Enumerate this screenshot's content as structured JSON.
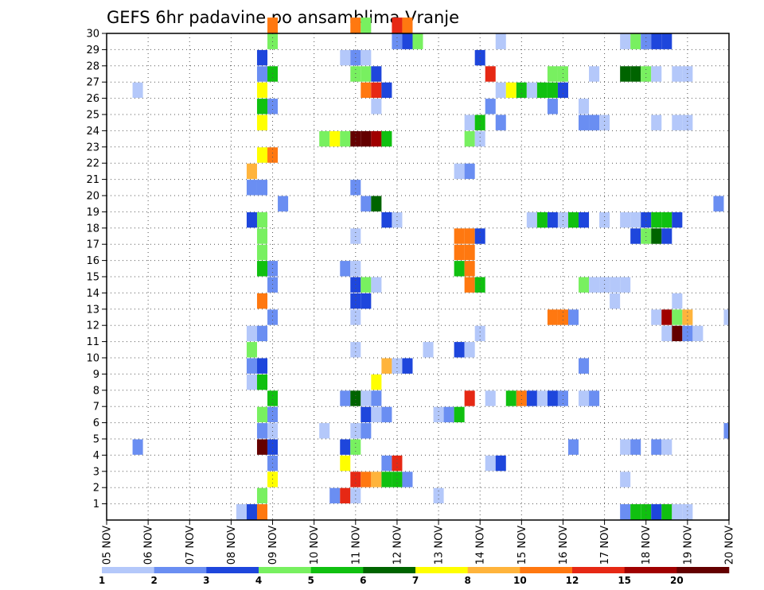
{
  "chart_data": {
    "type": "heatmap",
    "title": "GEFS 6hr padavine po ansamblima Vranje",
    "xlabel": "",
    "ylabel": "",
    "x_ticks": [
      "05 NOV",
      "06 NOV",
      "07 NOV",
      "08 NOV",
      "09 NOV",
      "10 NOV",
      "11 NOV",
      "12 NOV",
      "13 NOV",
      "14 NOV",
      "15 NOV",
      "16 NOV",
      "17 NOV",
      "18 NOV",
      "19 NOV",
      "20 NOV"
    ],
    "y_ticks": [
      "1",
      "2",
      "3",
      "4",
      "5",
      "6",
      "7",
      "8",
      "9",
      "10",
      "11",
      "12",
      "13",
      "14",
      "15",
      "16",
      "17",
      "18",
      "19",
      "20",
      "21",
      "22",
      "23",
      "24",
      "25",
      "26",
      "27",
      "28",
      "29",
      "30"
    ],
    "x_range": [
      "05 NOV 00Z",
      "20 NOV 00Z"
    ],
    "y_range": [
      0,
      30
    ],
    "grid": true,
    "colorbar": {
      "position": "bottom",
      "labels": [
        "1",
        "2",
        "3",
        "4",
        "5",
        "6",
        "7",
        "8",
        "10",
        "12",
        "15",
        "20"
      ],
      "colors": [
        "#b4c8fa",
        "#6a8ef2",
        "#1e46dc",
        "#78f060",
        "#10c010",
        "#006400",
        "#ffff00",
        "#ffb43c",
        "#ff7810",
        "#e62814",
        "#a00000",
        "#640000"
      ]
    },
    "cells": [
      {
        "d": 9.0,
        "m": 30,
        "c": 10
      },
      {
        "d": 11.0,
        "m": 30,
        "c": 10
      },
      {
        "d": 11.25,
        "m": 30,
        "c": 4
      },
      {
        "d": 12.0,
        "m": 30,
        "c": 14
      },
      {
        "d": 12.25,
        "m": 30,
        "c": 9
      },
      {
        "d": 9.0,
        "m": 29,
        "c": 4
      },
      {
        "d": 12.0,
        "m": 29,
        "c": 2
      },
      {
        "d": 12.25,
        "m": 29,
        "c": 3
      },
      {
        "d": 12.5,
        "m": 29,
        "c": 4
      },
      {
        "d": 14.5,
        "m": 29,
        "c": 1
      },
      {
        "d": 17.5,
        "m": 29,
        "c": 1
      },
      {
        "d": 17.75,
        "m": 29,
        "c": 4
      },
      {
        "d": 18.0,
        "m": 29,
        "c": 2
      },
      {
        "d": 18.25,
        "m": 29,
        "c": 3
      },
      {
        "d": 18.5,
        "m": 29,
        "c": 3
      },
      {
        "d": 8.75,
        "m": 28,
        "c": 3
      },
      {
        "d": 10.75,
        "m": 28,
        "c": 1
      },
      {
        "d": 11.0,
        "m": 28,
        "c": 2
      },
      {
        "d": 11.25,
        "m": 28,
        "c": 1
      },
      {
        "d": 14.0,
        "m": 28,
        "c": 3
      },
      {
        "d": 8.75,
        "m": 27,
        "c": 2
      },
      {
        "d": 9.0,
        "m": 27,
        "c": 5
      },
      {
        "d": 11.0,
        "m": 27,
        "c": 4
      },
      {
        "d": 11.25,
        "m": 27,
        "c": 4
      },
      {
        "d": 11.5,
        "m": 27,
        "c": 3
      },
      {
        "d": 14.25,
        "m": 27,
        "c": 14
      },
      {
        "d": 15.75,
        "m": 27,
        "c": 4
      },
      {
        "d": 16.0,
        "m": 27,
        "c": 4
      },
      {
        "d": 16.75,
        "m": 27,
        "c": 1
      },
      {
        "d": 17.5,
        "m": 27,
        "c": 6
      },
      {
        "d": 17.75,
        "m": 27,
        "c": 6
      },
      {
        "d": 18.0,
        "m": 27,
        "c": 4
      },
      {
        "d": 18.25,
        "m": 27,
        "c": 1
      },
      {
        "d": 18.75,
        "m": 27,
        "c": 1
      },
      {
        "d": 19.0,
        "m": 27,
        "c": 1
      },
      {
        "d": 5.75,
        "m": 26,
        "c": 1
      },
      {
        "d": 8.75,
        "m": 26,
        "c": 7
      },
      {
        "d": 11.25,
        "m": 26,
        "c": 10
      },
      {
        "d": 11.5,
        "m": 26,
        "c": 14
      },
      {
        "d": 11.75,
        "m": 26,
        "c": 3
      },
      {
        "d": 14.5,
        "m": 26,
        "c": 1
      },
      {
        "d": 14.75,
        "m": 26,
        "c": 7
      },
      {
        "d": 15.0,
        "m": 26,
        "c": 5
      },
      {
        "d": 15.25,
        "m": 26,
        "c": 1
      },
      {
        "d": 15.5,
        "m": 26,
        "c": 5
      },
      {
        "d": 15.75,
        "m": 26,
        "c": 5
      },
      {
        "d": 16.0,
        "m": 26,
        "c": 3
      },
      {
        "d": 8.75,
        "m": 25,
        "c": 5
      },
      {
        "d": 9.0,
        "m": 25,
        "c": 2
      },
      {
        "d": 11.5,
        "m": 25,
        "c": 1
      },
      {
        "d": 14.25,
        "m": 25,
        "c": 2
      },
      {
        "d": 15.75,
        "m": 25,
        "c": 2
      },
      {
        "d": 16.5,
        "m": 25,
        "c": 1
      },
      {
        "d": 8.75,
        "m": 24,
        "c": 7
      },
      {
        "d": 13.75,
        "m": 24,
        "c": 1
      },
      {
        "d": 14.0,
        "m": 24,
        "c": 5
      },
      {
        "d": 14.5,
        "m": 24,
        "c": 2
      },
      {
        "d": 16.5,
        "m": 24,
        "c": 2
      },
      {
        "d": 16.75,
        "m": 24,
        "c": 2
      },
      {
        "d": 17.0,
        "m": 24,
        "c": 1
      },
      {
        "d": 18.25,
        "m": 24,
        "c": 1
      },
      {
        "d": 18.75,
        "m": 24,
        "c": 1
      },
      {
        "d": 19.0,
        "m": 24,
        "c": 1
      },
      {
        "d": 10.25,
        "m": 23,
        "c": 4
      },
      {
        "d": 10.5,
        "m": 23,
        "c": 7
      },
      {
        "d": 10.75,
        "m": 23,
        "c": 4
      },
      {
        "d": 11.0,
        "m": 23,
        "c": 12
      },
      {
        "d": 11.25,
        "m": 23,
        "c": 12
      },
      {
        "d": 11.5,
        "m": 23,
        "c": 11
      },
      {
        "d": 11.75,
        "m": 23,
        "c": 5
      },
      {
        "d": 13.75,
        "m": 23,
        "c": 4
      },
      {
        "d": 14.0,
        "m": 23,
        "c": 1
      },
      {
        "d": 8.75,
        "m": 22,
        "c": 7
      },
      {
        "d": 9.0,
        "m": 22,
        "c": 9
      },
      {
        "d": 8.5,
        "m": 21,
        "c": 8
      },
      {
        "d": 13.5,
        "m": 21,
        "c": 1
      },
      {
        "d": 13.75,
        "m": 21,
        "c": 2
      },
      {
        "d": 8.5,
        "m": 20,
        "c": 2
      },
      {
        "d": 8.75,
        "m": 20,
        "c": 2
      },
      {
        "d": 11.0,
        "m": 20,
        "c": 2
      },
      {
        "d": 9.25,
        "m": 19,
        "c": 2
      },
      {
        "d": 11.25,
        "m": 19,
        "c": 2
      },
      {
        "d": 11.5,
        "m": 19,
        "c": 6
      },
      {
        "d": 19.75,
        "m": 19,
        "c": 2
      },
      {
        "d": 8.5,
        "m": 18,
        "c": 3
      },
      {
        "d": 8.75,
        "m": 18,
        "c": 4
      },
      {
        "d": 11.75,
        "m": 18,
        "c": 3
      },
      {
        "d": 12.0,
        "m": 18,
        "c": 1
      },
      {
        "d": 15.25,
        "m": 18,
        "c": 1
      },
      {
        "d": 15.5,
        "m": 18,
        "c": 5
      },
      {
        "d": 15.75,
        "m": 18,
        "c": 3
      },
      {
        "d": 16.0,
        "m": 18,
        "c": 1
      },
      {
        "d": 16.25,
        "m": 18,
        "c": 5
      },
      {
        "d": 16.5,
        "m": 18,
        "c": 3
      },
      {
        "d": 17.0,
        "m": 18,
        "c": 1
      },
      {
        "d": 17.5,
        "m": 18,
        "c": 1
      },
      {
        "d": 17.75,
        "m": 18,
        "c": 1
      },
      {
        "d": 18.0,
        "m": 18,
        "c": 3
      },
      {
        "d": 18.25,
        "m": 18,
        "c": 5
      },
      {
        "d": 18.5,
        "m": 18,
        "c": 5
      },
      {
        "d": 18.75,
        "m": 18,
        "c": 3
      },
      {
        "d": 8.75,
        "m": 17,
        "c": 4
      },
      {
        "d": 11.0,
        "m": 17,
        "c": 1
      },
      {
        "d": 13.5,
        "m": 17,
        "c": 9
      },
      {
        "d": 13.75,
        "m": 17,
        "c": 9
      },
      {
        "d": 14.0,
        "m": 17,
        "c": 3
      },
      {
        "d": 17.75,
        "m": 17,
        "c": 3
      },
      {
        "d": 18.0,
        "m": 17,
        "c": 4
      },
      {
        "d": 18.25,
        "m": 17,
        "c": 6
      },
      {
        "d": 18.5,
        "m": 17,
        "c": 3
      },
      {
        "d": 8.75,
        "m": 16,
        "c": 4
      },
      {
        "d": 13.5,
        "m": 16,
        "c": 9
      },
      {
        "d": 13.75,
        "m": 16,
        "c": 10
      },
      {
        "d": 8.75,
        "m": 15,
        "c": 5
      },
      {
        "d": 9.0,
        "m": 15,
        "c": 2
      },
      {
        "d": 10.75,
        "m": 15,
        "c": 2
      },
      {
        "d": 11.0,
        "m": 15,
        "c": 1
      },
      {
        "d": 13.5,
        "m": 15,
        "c": 5
      },
      {
        "d": 13.75,
        "m": 15,
        "c": 10
      },
      {
        "d": 9.0,
        "m": 14,
        "c": 2
      },
      {
        "d": 11.0,
        "m": 14,
        "c": 3
      },
      {
        "d": 11.25,
        "m": 14,
        "c": 4
      },
      {
        "d": 11.5,
        "m": 14,
        "c": 1
      },
      {
        "d": 13.75,
        "m": 14,
        "c": 9
      },
      {
        "d": 14.0,
        "m": 14,
        "c": 5
      },
      {
        "d": 16.5,
        "m": 14,
        "c": 4
      },
      {
        "d": 16.75,
        "m": 14,
        "c": 1
      },
      {
        "d": 17.0,
        "m": 14,
        "c": 1
      },
      {
        "d": 17.25,
        "m": 14,
        "c": 1
      },
      {
        "d": 17.5,
        "m": 14,
        "c": 1
      },
      {
        "d": 8.75,
        "m": 13,
        "c": 9
      },
      {
        "d": 11.0,
        "m": 13,
        "c": 3
      },
      {
        "d": 11.25,
        "m": 13,
        "c": 3
      },
      {
        "d": 17.25,
        "m": 13,
        "c": 1
      },
      {
        "d": 18.75,
        "m": 13,
        "c": 1
      },
      {
        "d": 9.0,
        "m": 12,
        "c": 2
      },
      {
        "d": 11.0,
        "m": 12,
        "c": 1
      },
      {
        "d": 15.75,
        "m": 12,
        "c": 10
      },
      {
        "d": 16.0,
        "m": 12,
        "c": 9
      },
      {
        "d": 16.25,
        "m": 12,
        "c": 2
      },
      {
        "d": 18.25,
        "m": 12,
        "c": 1
      },
      {
        "d": 18.5,
        "m": 12,
        "c": 11
      },
      {
        "d": 18.75,
        "m": 12,
        "c": 4
      },
      {
        "d": 19.0,
        "m": 12,
        "c": 8
      },
      {
        "d": 20.0,
        "m": 12,
        "c": 1
      },
      {
        "d": 8.5,
        "m": 11,
        "c": 1
      },
      {
        "d": 8.75,
        "m": 11,
        "c": 2
      },
      {
        "d": 14.0,
        "m": 11,
        "c": 1
      },
      {
        "d": 18.5,
        "m": 11,
        "c": 1
      },
      {
        "d": 18.75,
        "m": 11,
        "c": 12
      },
      {
        "d": 19.0,
        "m": 11,
        "c": 2
      },
      {
        "d": 19.25,
        "m": 11,
        "c": 1
      },
      {
        "d": 8.5,
        "m": 10,
        "c": 4
      },
      {
        "d": 11.0,
        "m": 10,
        "c": 1
      },
      {
        "d": 12.75,
        "m": 10,
        "c": 1
      },
      {
        "d": 13.5,
        "m": 10,
        "c": 3
      },
      {
        "d": 13.75,
        "m": 10,
        "c": 1
      },
      {
        "d": 8.5,
        "m": 9,
        "c": 2
      },
      {
        "d": 8.75,
        "m": 9,
        "c": 3
      },
      {
        "d": 11.75,
        "m": 9,
        "c": 8
      },
      {
        "d": 12.0,
        "m": 9,
        "c": 1
      },
      {
        "d": 12.25,
        "m": 9,
        "c": 3
      },
      {
        "d": 16.5,
        "m": 9,
        "c": 2
      },
      {
        "d": 8.5,
        "m": 8,
        "c": 1
      },
      {
        "d": 8.75,
        "m": 8,
        "c": 5
      },
      {
        "d": 11.5,
        "m": 8,
        "c": 7
      },
      {
        "d": 9.0,
        "m": 7,
        "c": 5
      },
      {
        "d": 10.75,
        "m": 7,
        "c": 2
      },
      {
        "d": 11.0,
        "m": 7,
        "c": 6
      },
      {
        "d": 11.25,
        "m": 7,
        "c": 1
      },
      {
        "d": 11.5,
        "m": 7,
        "c": 2
      },
      {
        "d": 13.75,
        "m": 7,
        "c": 14
      },
      {
        "d": 14.25,
        "m": 7,
        "c": 1
      },
      {
        "d": 14.75,
        "m": 7,
        "c": 5
      },
      {
        "d": 15.0,
        "m": 7,
        "c": 9
      },
      {
        "d": 15.25,
        "m": 7,
        "c": 3
      },
      {
        "d": 15.5,
        "m": 7,
        "c": 1
      },
      {
        "d": 15.75,
        "m": 7,
        "c": 3
      },
      {
        "d": 16.0,
        "m": 7,
        "c": 2
      },
      {
        "d": 16.5,
        "m": 7,
        "c": 1
      },
      {
        "d": 16.75,
        "m": 7,
        "c": 2
      },
      {
        "d": 8.75,
        "m": 6,
        "c": 4
      },
      {
        "d": 9.0,
        "m": 6,
        "c": 2
      },
      {
        "d": 11.25,
        "m": 6,
        "c": 3
      },
      {
        "d": 11.5,
        "m": 6,
        "c": 1
      },
      {
        "d": 11.75,
        "m": 6,
        "c": 2
      },
      {
        "d": 13.0,
        "m": 6,
        "c": 1
      },
      {
        "d": 13.25,
        "m": 6,
        "c": 2
      },
      {
        "d": 13.5,
        "m": 6,
        "c": 5
      },
      {
        "d": 8.75,
        "m": 5,
        "c": 2
      },
      {
        "d": 9.0,
        "m": 5,
        "c": 1
      },
      {
        "d": 10.25,
        "m": 5,
        "c": 1
      },
      {
        "d": 11.0,
        "m": 5,
        "c": 1
      },
      {
        "d": 11.25,
        "m": 5,
        "c": 2
      },
      {
        "d": 20.0,
        "m": 5,
        "c": 2
      },
      {
        "d": 5.75,
        "m": 4,
        "c": 2
      },
      {
        "d": 8.75,
        "m": 4,
        "c": 12
      },
      {
        "d": 9.0,
        "m": 4,
        "c": 3
      },
      {
        "d": 10.75,
        "m": 4,
        "c": 3
      },
      {
        "d": 11.0,
        "m": 4,
        "c": 4
      },
      {
        "d": 16.25,
        "m": 4,
        "c": 2
      },
      {
        "d": 17.5,
        "m": 4,
        "c": 1
      },
      {
        "d": 17.75,
        "m": 4,
        "c": 2
      },
      {
        "d": 18.25,
        "m": 4,
        "c": 2
      },
      {
        "d": 18.5,
        "m": 4,
        "c": 1
      },
      {
        "d": 9.0,
        "m": 3,
        "c": 2
      },
      {
        "d": 10.75,
        "m": 3,
        "c": 7
      },
      {
        "d": 11.75,
        "m": 3,
        "c": 2
      },
      {
        "d": 12.0,
        "m": 3,
        "c": 14
      },
      {
        "d": 14.25,
        "m": 3,
        "c": 1
      },
      {
        "d": 14.5,
        "m": 3,
        "c": 3
      },
      {
        "d": 9.0,
        "m": 2,
        "c": 7
      },
      {
        "d": 11.0,
        "m": 2,
        "c": 14
      },
      {
        "d": 11.25,
        "m": 2,
        "c": 10
      },
      {
        "d": 11.5,
        "m": 2,
        "c": 8
      },
      {
        "d": 11.75,
        "m": 2,
        "c": 5
      },
      {
        "d": 12.0,
        "m": 2,
        "c": 5
      },
      {
        "d": 12.25,
        "m": 2,
        "c": 2
      },
      {
        "d": 17.5,
        "m": 2,
        "c": 1
      },
      {
        "d": 8.75,
        "m": 1,
        "c": 4
      },
      {
        "d": 10.5,
        "m": 1,
        "c": 2
      },
      {
        "d": 10.75,
        "m": 1,
        "c": 14
      },
      {
        "d": 11.0,
        "m": 1,
        "c": 1
      },
      {
        "d": 13.0,
        "m": 1,
        "c": 1
      },
      {
        "d": 8.25,
        "m": 0,
        "c": 1
      },
      {
        "d": 8.5,
        "m": 0,
        "c": 3
      },
      {
        "d": 8.75,
        "m": 0,
        "c": 9
      },
      {
        "d": 17.5,
        "m": 0,
        "c": 2
      },
      {
        "d": 17.75,
        "m": 0,
        "c": 5
      },
      {
        "d": 18.0,
        "m": 0,
        "c": 5
      },
      {
        "d": 18.25,
        "m": 0,
        "c": 3
      },
      {
        "d": 18.5,
        "m": 0,
        "c": 5
      },
      {
        "d": 18.75,
        "m": 0,
        "c": 1
      },
      {
        "d": 19.0,
        "m": 0,
        "c": 1
      }
    ]
  },
  "palette": {
    "1": "#b4c8fa",
    "2": "#6a8ef2",
    "3": "#1e46dc",
    "4": "#78f060",
    "5": "#10c010",
    "6": "#006400",
    "7": "#ffff00",
    "8": "#ffb43c",
    "9": "#ff7810",
    "10": "#ff7810",
    "11": "#a00000",
    "12": "#640000",
    "14": "#e62814"
  }
}
